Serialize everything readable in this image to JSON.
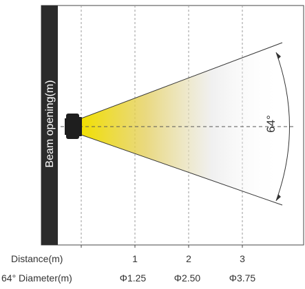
{
  "sidebar": {
    "label": "Beam  opening(m)"
  },
  "beam": {
    "angle_label": "64°",
    "color": "#F2E000"
  },
  "axis": {
    "distance_label": "Distance(m)",
    "diameter_label": "64° Diameter(m)",
    "ticks": [
      {
        "distance": "1",
        "diameter": "Φ1.25"
      },
      {
        "distance": "2",
        "diameter": "Φ2.50"
      },
      {
        "distance": "3",
        "diameter": "Φ3.75"
      }
    ]
  }
}
